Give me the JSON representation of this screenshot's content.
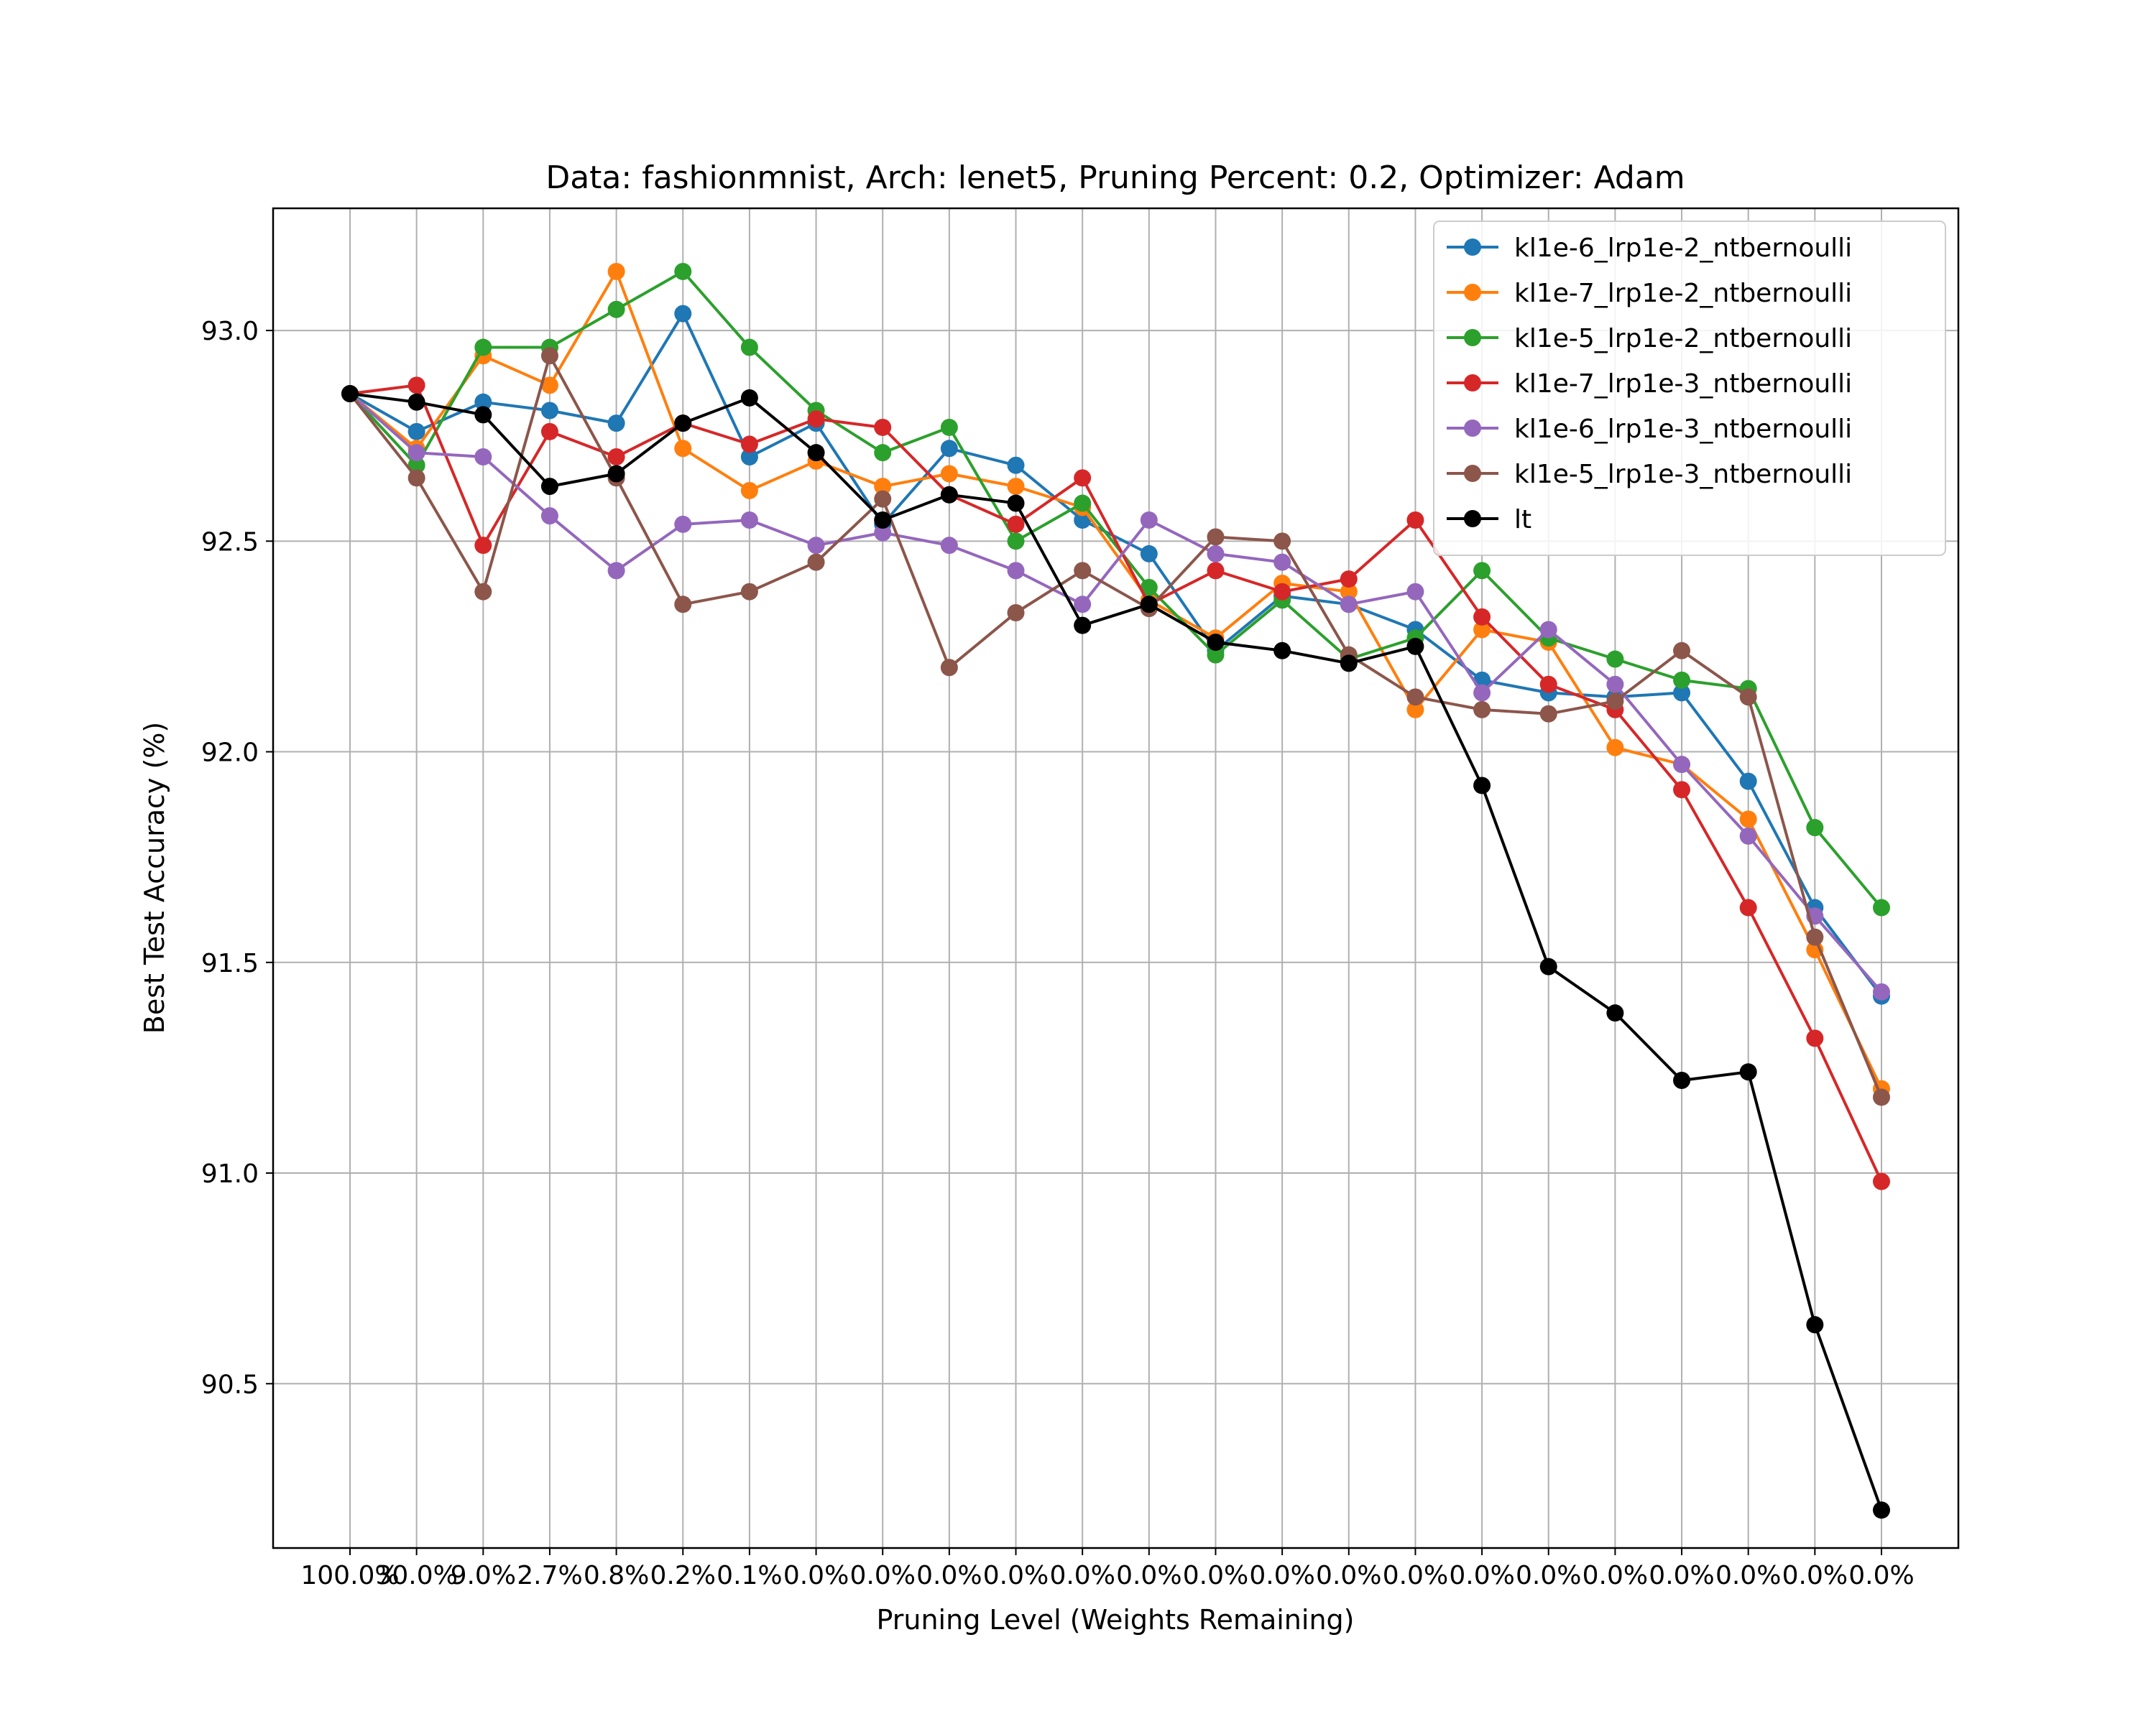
{
  "chart_data": {
    "type": "line",
    "title": "Data: fashionmnist, Arch: lenet5, Pruning Percent: 0.2, Optimizer: Adam",
    "xlabel": "Pruning Level (Weights Remaining)",
    "ylabel": "Best Test Accuracy (%)",
    "x": [
      "100.0%",
      "30.0%",
      "9.0%",
      "2.7%",
      "0.8%",
      "0.2%",
      "0.1%",
      "0.0%",
      "0.0%",
      "0.0%",
      "0.0%",
      "0.0%",
      "0.0%",
      "0.0%",
      "0.0%",
      "0.0%",
      "0.0%",
      "0.0%",
      "0.0%",
      "0.0%",
      "0.0%",
      "0.0%",
      "0.0%",
      "0.0%"
    ],
    "ylim": [
      90.11,
      93.29
    ],
    "yticks": [
      90.5,
      91.0,
      91.5,
      92.0,
      92.5,
      93.0
    ],
    "ytick_labels": [
      "90.5",
      "91.0",
      "91.5",
      "92.0",
      "92.5",
      "93.0"
    ],
    "grid": true,
    "legend_position": "top-right",
    "series": [
      {
        "name": "kl1e-6_lrp1e-2_ntbernoulli",
        "color": "#1f77b4",
        "values": [
          92.85,
          92.76,
          92.83,
          92.81,
          92.78,
          93.04,
          92.7,
          92.78,
          92.54,
          92.72,
          92.68,
          92.55,
          92.47,
          92.24,
          92.37,
          92.35,
          92.29,
          92.17,
          92.14,
          92.13,
          92.14,
          91.93,
          91.63,
          91.42
        ]
      },
      {
        "name": "kl1e-7_lrp1e-2_ntbernoulli",
        "color": "#ff7f0e",
        "values": [
          92.85,
          92.72,
          92.94,
          92.87,
          93.14,
          92.72,
          92.62,
          92.69,
          92.63,
          92.66,
          92.63,
          92.58,
          92.36,
          92.27,
          92.4,
          92.38,
          92.1,
          92.29,
          92.26,
          92.01,
          91.97,
          91.84,
          91.53,
          91.2
        ]
      },
      {
        "name": "kl1e-5_lrp1e-2_ntbernoulli",
        "color": "#2ca02c",
        "values": [
          92.85,
          92.68,
          92.96,
          92.96,
          93.05,
          93.14,
          92.96,
          92.81,
          92.71,
          92.77,
          92.5,
          92.59,
          92.39,
          92.23,
          92.36,
          92.22,
          92.27,
          92.43,
          92.27,
          92.22,
          92.17,
          92.15,
          91.82,
          91.63
        ]
      },
      {
        "name": "kl1e-7_lrp1e-3_ntbernoulli",
        "color": "#d62728",
        "values": [
          92.85,
          92.87,
          92.49,
          92.76,
          92.7,
          92.78,
          92.73,
          92.79,
          92.77,
          92.61,
          92.54,
          92.65,
          92.35,
          92.43,
          92.38,
          92.41,
          92.55,
          92.32,
          92.16,
          92.1,
          91.91,
          91.63,
          91.32,
          90.98
        ]
      },
      {
        "name": "kl1e-6_lrp1e-3_ntbernoulli",
        "color": "#9467bd",
        "values": [
          92.85,
          92.71,
          92.7,
          92.56,
          92.43,
          92.54,
          92.55,
          92.49,
          92.52,
          92.49,
          92.43,
          92.35,
          92.55,
          92.47,
          92.45,
          92.35,
          92.38,
          92.14,
          92.29,
          92.16,
          91.97,
          91.8,
          91.61,
          91.43
        ]
      },
      {
        "name": "kl1e-5_lrp1e-3_ntbernoulli",
        "color": "#8c564b",
        "values": [
          92.85,
          92.65,
          92.38,
          92.94,
          92.65,
          92.35,
          92.38,
          92.45,
          92.6,
          92.2,
          92.33,
          92.43,
          92.34,
          92.51,
          92.5,
          92.23,
          92.13,
          92.1,
          92.09,
          92.12,
          92.24,
          92.13,
          91.56,
          91.18
        ]
      },
      {
        "name": "lt",
        "color": "#000000",
        "values": [
          92.85,
          92.83,
          92.8,
          92.63,
          92.66,
          92.78,
          92.84,
          92.71,
          92.55,
          92.61,
          92.59,
          92.3,
          92.35,
          92.26,
          92.24,
          92.21,
          92.25,
          91.92,
          91.49,
          91.38,
          91.22,
          91.24,
          90.64,
          90.2
        ]
      }
    ]
  }
}
